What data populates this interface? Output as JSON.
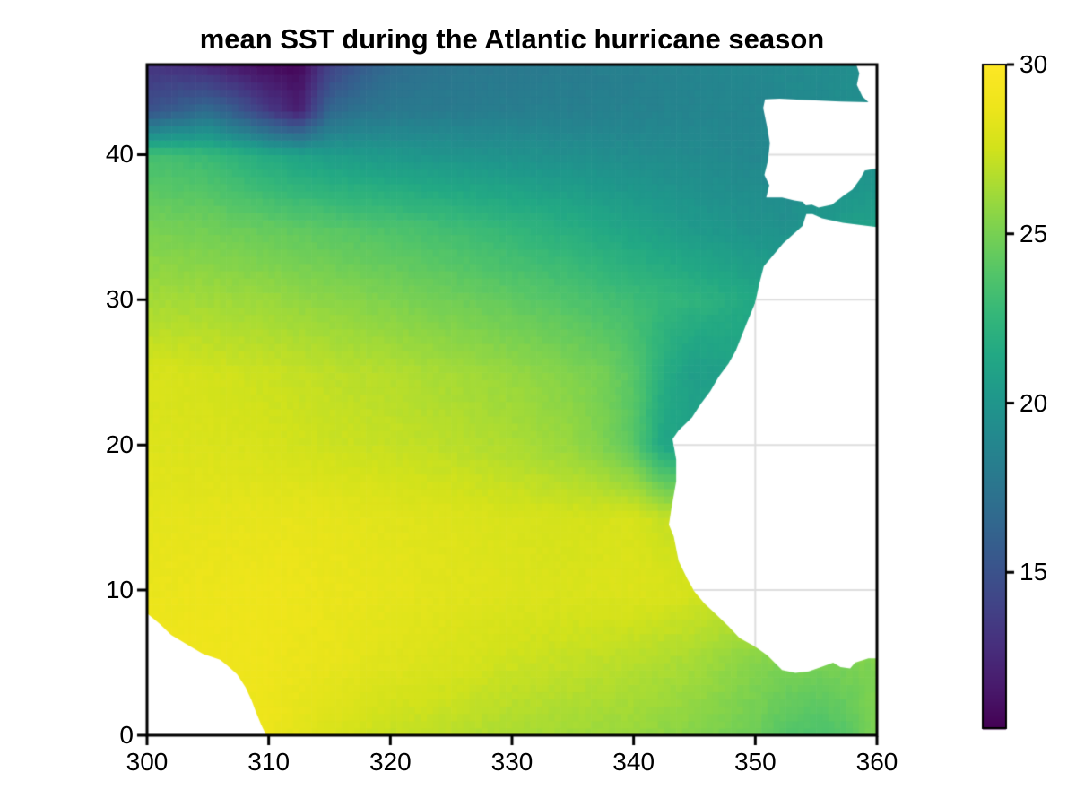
{
  "title": "mean SST during the Atlantic hurricane season",
  "background_color": "#ffffff",
  "chart_data": {
    "type": "heatmap",
    "title": "mean SST during the Atlantic hurricane season",
    "xlabel": "",
    "ylabel": "",
    "xlim": [
      300,
      360
    ],
    "ylim": [
      0,
      46.2
    ],
    "xticks": [
      300,
      310,
      320,
      330,
      340,
      350,
      360
    ],
    "yticks": [
      0,
      10,
      20,
      30,
      40
    ],
    "grid": true,
    "gridline_color": "#dedede",
    "frame_color": "#000000",
    "legend_position": "right-colorbar",
    "colorbar": {
      "colormap": "viridis",
      "vmin": 10.4,
      "vmax": 30,
      "ticks": [
        15,
        20,
        25,
        30
      ]
    },
    "viridis_stops": [
      [
        68,
        1,
        84
      ],
      [
        72,
        26,
        108
      ],
      [
        71,
        47,
        125
      ],
      [
        65,
        68,
        135
      ],
      [
        57,
        86,
        140
      ],
      [
        49,
        104,
        142
      ],
      [
        42,
        120,
        142
      ],
      [
        35,
        136,
        142
      ],
      [
        31,
        152,
        139
      ],
      [
        34,
        168,
        132
      ],
      [
        53,
        183,
        121
      ],
      [
        84,
        197,
        104
      ],
      [
        122,
        209,
        81
      ],
      [
        165,
        219,
        54
      ],
      [
        210,
        226,
        27
      ],
      [
        238,
        229,
        27
      ],
      [
        253,
        231,
        37
      ]
    ],
    "grid_lons": [
      300,
      302.5,
      305,
      307.5,
      310,
      312.5,
      315,
      317.5,
      320,
      322.5,
      325,
      327.5,
      330,
      332.5,
      335,
      337.5,
      340,
      342.5,
      345,
      347.5,
      350,
      352.5,
      355,
      357.5,
      360
    ],
    "grid_lats": [
      0,
      5,
      10,
      15,
      20,
      25,
      30,
      35,
      40,
      43,
      46.2
    ],
    "sst_grid_units": "degC, rows follow grid_lats (south to north), cols follow grid_lons (west to east)",
    "sst_grid": [
      [
        28.8,
        28.8,
        28.75,
        28.7,
        28.7,
        28.3,
        27.9,
        27.55,
        27.2,
        27.05,
        26.9,
        26.65,
        26.4,
        26.3,
        26.2,
        26.05,
        25.9,
        25.65,
        25.4,
        25.05,
        24.7,
        23.8,
        23.6,
        23.9,
        25.3
      ],
      [
        28.9,
        28.9,
        28.9,
        28.85,
        28.8,
        28.65,
        28.5,
        28.3,
        28.1,
        27.95,
        27.8,
        27.6,
        27.4,
        27.25,
        27.1,
        26.95,
        26.8,
        26.55,
        26.3,
        25.85,
        25.4,
        25.2,
        25.0,
        25.1,
        25.2
      ],
      [
        28.6,
        28.65,
        28.7,
        28.75,
        28.8,
        28.7,
        28.6,
        28.5,
        28.4,
        28.3,
        28.2,
        28.1,
        28.0,
        27.95,
        27.9,
        27.95,
        28.0,
        27.9,
        27.7,
        27.5,
        27.4,
        27.3,
        27.2,
        27.1,
        27.0
      ],
      [
        28.4,
        28.4,
        28.4,
        28.45,
        28.5,
        28.45,
        28.4,
        28.3,
        28.2,
        28.1,
        28.0,
        27.9,
        27.8,
        27.7,
        27.6,
        27.7,
        27.8,
        27.2,
        27.0,
        27.0,
        27.0,
        27.0,
        27.0,
        27.0,
        27.0
      ],
      [
        28.0,
        27.95,
        27.9,
        27.8,
        27.7,
        27.55,
        27.4,
        27.3,
        27.2,
        27.05,
        26.9,
        26.7,
        26.5,
        26.2,
        25.9,
        25.2,
        24.0,
        21.2,
        21.0,
        21.5,
        22.0,
        22.0,
        22.0,
        22.0,
        22.0
      ],
      [
        27.8,
        27.7,
        27.6,
        27.45,
        27.3,
        27.15,
        27.0,
        26.85,
        26.7,
        26.5,
        26.3,
        26.1,
        25.9,
        25.6,
        25.3,
        24.9,
        24.0,
        21.8,
        20.6,
        20.8,
        21.0,
        21.0,
        21.0,
        21.0,
        21.0
      ],
      [
        26.3,
        26.25,
        26.2,
        26.1,
        26.0,
        25.8,
        25.6,
        25.4,
        25.2,
        25.0,
        24.8,
        24.55,
        24.3,
        24.0,
        23.7,
        23.35,
        23.0,
        22.65,
        22.3,
        21.9,
        21.4,
        21.3,
        21.3,
        21.3,
        21.3
      ],
      [
        25.0,
        24.9,
        24.8,
        24.6,
        24.4,
        24.2,
        24.0,
        23.8,
        23.6,
        23.35,
        23.1,
        22.8,
        22.5,
        22.15,
        21.8,
        21.4,
        21.0,
        20.65,
        20.3,
        20.0,
        19.8,
        19.6,
        20.2,
        20.6,
        21.0
      ],
      [
        23.3,
        23.1,
        22.8,
        22.2,
        21.5,
        21.0,
        20.6,
        20.4,
        20.2,
        20.0,
        19.9,
        19.8,
        19.7,
        19.6,
        19.5,
        19.4,
        19.3,
        19.25,
        19.2,
        19.05,
        18.9,
        19.0,
        19.3,
        19.4,
        19.5
      ],
      [
        15.0,
        16.0,
        17.0,
        15.5,
        13.5,
        12.0,
        16.5,
        17.4,
        17.8,
        17.9,
        18.0,
        18.1,
        18.2,
        18.3,
        18.3,
        18.4,
        18.5,
        18.6,
        18.7,
        18.8,
        18.8,
        19.0,
        19.2,
        19.4,
        19.5
      ],
      [
        13.2,
        12.8,
        12.2,
        11.4,
        10.8,
        10.6,
        13.8,
        15.5,
        16.8,
        17.3,
        17.6,
        17.7,
        17.8,
        17.9,
        18.0,
        18.2,
        18.3,
        18.5,
        18.6,
        18.8,
        18.9,
        19.1,
        19.2,
        19.3,
        19.4
      ]
    ],
    "land_masses": [
      {
        "name": "south-america",
        "polygon": [
          [
            300,
            8.4
          ],
          [
            301,
            7.7
          ],
          [
            302,
            6.9
          ],
          [
            303.6,
            6.1
          ],
          [
            304.6,
            5.6
          ],
          [
            306,
            5.2
          ],
          [
            306.6,
            4.8
          ],
          [
            307.4,
            4.2
          ],
          [
            308.1,
            3.3
          ],
          [
            308.6,
            2.4
          ],
          [
            309,
            1.5
          ],
          [
            309.4,
            0.7
          ],
          [
            309.8,
            0
          ],
          [
            300,
            0
          ]
        ]
      },
      {
        "name": "northwest-africa",
        "polygon": [
          [
            360,
            35.0
          ],
          [
            357.2,
            35.3
          ],
          [
            355.5,
            35.6
          ],
          [
            354.7,
            35.9
          ],
          [
            354.2,
            35.9
          ],
          [
            354.0,
            35.4
          ],
          [
            353.9,
            35.1
          ],
          [
            352.3,
            33.9
          ],
          [
            351.4,
            33.0
          ],
          [
            350.7,
            32.3
          ],
          [
            350.3,
            31.0
          ],
          [
            350.0,
            29.8
          ],
          [
            349.3,
            28.4
          ],
          [
            348.4,
            26.5
          ],
          [
            347.8,
            25.6
          ],
          [
            347.0,
            24.7
          ],
          [
            346.3,
            23.7
          ],
          [
            345.5,
            22.8
          ],
          [
            344.8,
            21.9
          ],
          [
            343.7,
            21.0
          ],
          [
            343.2,
            20.4
          ],
          [
            343.5,
            19.0
          ],
          [
            343.5,
            17.5
          ],
          [
            343.1,
            15.6
          ],
          [
            342.9,
            14.5
          ],
          [
            343.3,
            13.7
          ],
          [
            343.7,
            12.0
          ],
          [
            344.4,
            10.8
          ],
          [
            345.0,
            9.9
          ],
          [
            345.8,
            9.1
          ],
          [
            346.8,
            8.3
          ],
          [
            347.8,
            7.5
          ],
          [
            348.7,
            6.7
          ],
          [
            350.0,
            6.1
          ],
          [
            351.0,
            5.5
          ],
          [
            352.2,
            4.5
          ],
          [
            353.3,
            4.3
          ],
          [
            354.4,
            4.4
          ],
          [
            355.4,
            4.7
          ],
          [
            356.4,
            5.0
          ],
          [
            357.0,
            4.7
          ],
          [
            357.8,
            4.6
          ],
          [
            358.2,
            5.0
          ],
          [
            359.3,
            5.3
          ],
          [
            360,
            5.3
          ]
        ]
      },
      {
        "name": "iberia-france",
        "polygon": [
          [
            358.3,
            46.2
          ],
          [
            358.55,
            45.6
          ],
          [
            358.35,
            44.8
          ],
          [
            358.8,
            44.0
          ],
          [
            359.3,
            43.6
          ],
          [
            357.0,
            43.65
          ],
          [
            354.5,
            43.75
          ],
          [
            352.0,
            43.85
          ],
          [
            350.8,
            43.8
          ],
          [
            350.65,
            43.2
          ],
          [
            350.95,
            42.0
          ],
          [
            351.2,
            40.8
          ],
          [
            351.05,
            39.6
          ],
          [
            350.75,
            38.6
          ],
          [
            351.15,
            37.9
          ],
          [
            350.9,
            37.05
          ],
          [
            352.2,
            37.05
          ],
          [
            353.2,
            36.85
          ],
          [
            353.9,
            36.75
          ],
          [
            354.15,
            36.5
          ],
          [
            354.65,
            36.55
          ],
          [
            355.2,
            36.35
          ],
          [
            356.3,
            36.55
          ],
          [
            357.3,
            37.2
          ],
          [
            358.0,
            37.6
          ],
          [
            358.6,
            38.3
          ],
          [
            359.0,
            38.9
          ],
          [
            360,
            39.05
          ],
          [
            360,
            46.2
          ]
        ]
      }
    ]
  }
}
